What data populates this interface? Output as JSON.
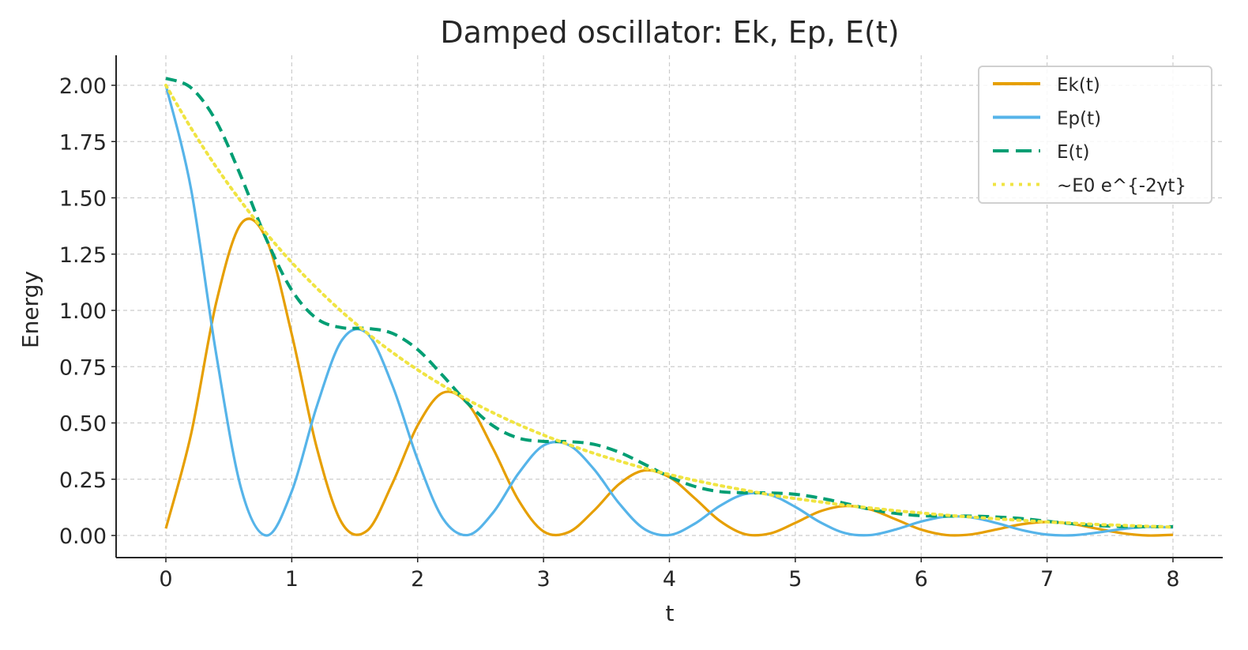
{
  "chart_data": {
    "type": "line",
    "title": "Damped oscillator: Ek, Ep, E(t)",
    "xlabel": "t",
    "ylabel": "Energy",
    "xlim": [
      -0.4,
      8.4
    ],
    "ylim": [
      -0.1,
      2.13
    ],
    "xticks": [
      "0",
      "1",
      "2",
      "3",
      "4",
      "5",
      "6",
      "7",
      "8"
    ],
    "yticks": [
      "0.00",
      "0.25",
      "0.50",
      "0.75",
      "1.00",
      "1.25",
      "1.50",
      "1.75",
      "2.00"
    ],
    "grid": true,
    "legend_position": "top-right",
    "x": [
      0,
      0.2,
      0.4,
      0.6,
      0.8,
      1.0,
      1.2,
      1.4,
      1.6,
      1.8,
      2.0,
      2.2,
      2.4,
      2.6,
      2.8,
      3.0,
      3.2,
      3.4,
      3.6,
      3.8,
      4.0,
      4.2,
      4.4,
      4.6,
      4.8,
      5.0,
      5.2,
      5.4,
      5.6,
      5.8,
      6.0,
      6.2,
      6.4,
      6.6,
      6.8,
      7.0,
      7.2,
      7.4,
      7.6,
      7.8,
      8.0
    ],
    "series": [
      {
        "name": "Ek(t)",
        "color": "#E69F00",
        "style": "solid",
        "values": [
          0.031,
          0.45,
          1.035,
          1.387,
          1.314,
          0.894,
          0.387,
          0.054,
          0.022,
          0.232,
          0.489,
          0.634,
          0.584,
          0.385,
          0.158,
          0.018,
          0.015,
          0.11,
          0.228,
          0.289,
          0.259,
          0.166,
          0.065,
          0.006,
          0.009,
          0.056,
          0.108,
          0.131,
          0.115,
          0.071,
          0.026,
          0.002,
          0.005,
          0.027,
          0.05,
          0.06,
          0.051,
          0.03,
          0.01,
          0.0,
          0.003
        ]
      },
      {
        "name": "Ep(t)",
        "color": "#56B4E9",
        "style": "solid",
        "values": [
          2.0,
          1.539,
          0.805,
          0.204,
          0.0,
          0.196,
          0.576,
          0.869,
          0.897,
          0.666,
          0.337,
          0.076,
          0.002,
          0.102,
          0.275,
          0.4,
          0.402,
          0.295,
          0.143,
          0.029,
          0.002,
          0.052,
          0.131,
          0.184,
          0.18,
          0.127,
          0.058,
          0.01,
          0.002,
          0.027,
          0.062,
          0.084,
          0.08,
          0.055,
          0.024,
          0.004,
          0.001,
          0.013,
          0.029,
          0.038,
          0.036
        ]
      },
      {
        "name": "E(t)",
        "color": "#009E73",
        "style": "dashed",
        "values": [
          2.031,
          1.989,
          1.84,
          1.591,
          1.314,
          1.09,
          0.963,
          0.923,
          0.92,
          0.898,
          0.826,
          0.71,
          0.586,
          0.487,
          0.433,
          0.418,
          0.417,
          0.405,
          0.37,
          0.317,
          0.261,
          0.218,
          0.195,
          0.19,
          0.189,
          0.183,
          0.166,
          0.142,
          0.116,
          0.098,
          0.088,
          0.086,
          0.086,
          0.082,
          0.075,
          0.063,
          0.052,
          0.044,
          0.04,
          0.039,
          0.039
        ]
      },
      {
        "name": "~E0 e^{-2γt}",
        "color": "#F0E442",
        "style": "dotted",
        "values": [
          2.0,
          1.81,
          1.637,
          1.482,
          1.341,
          1.213,
          1.098,
          0.993,
          0.899,
          0.813,
          0.736,
          0.666,
          0.602,
          0.545,
          0.493,
          0.446,
          0.404,
          0.365,
          0.331,
          0.299,
          0.271,
          0.245,
          0.222,
          0.201,
          0.181,
          0.164,
          0.149,
          0.134,
          0.122,
          0.11,
          0.1,
          0.09,
          0.082,
          0.074,
          0.067,
          0.06,
          0.055,
          0.049,
          0.045,
          0.041,
          0.037
        ]
      }
    ]
  }
}
